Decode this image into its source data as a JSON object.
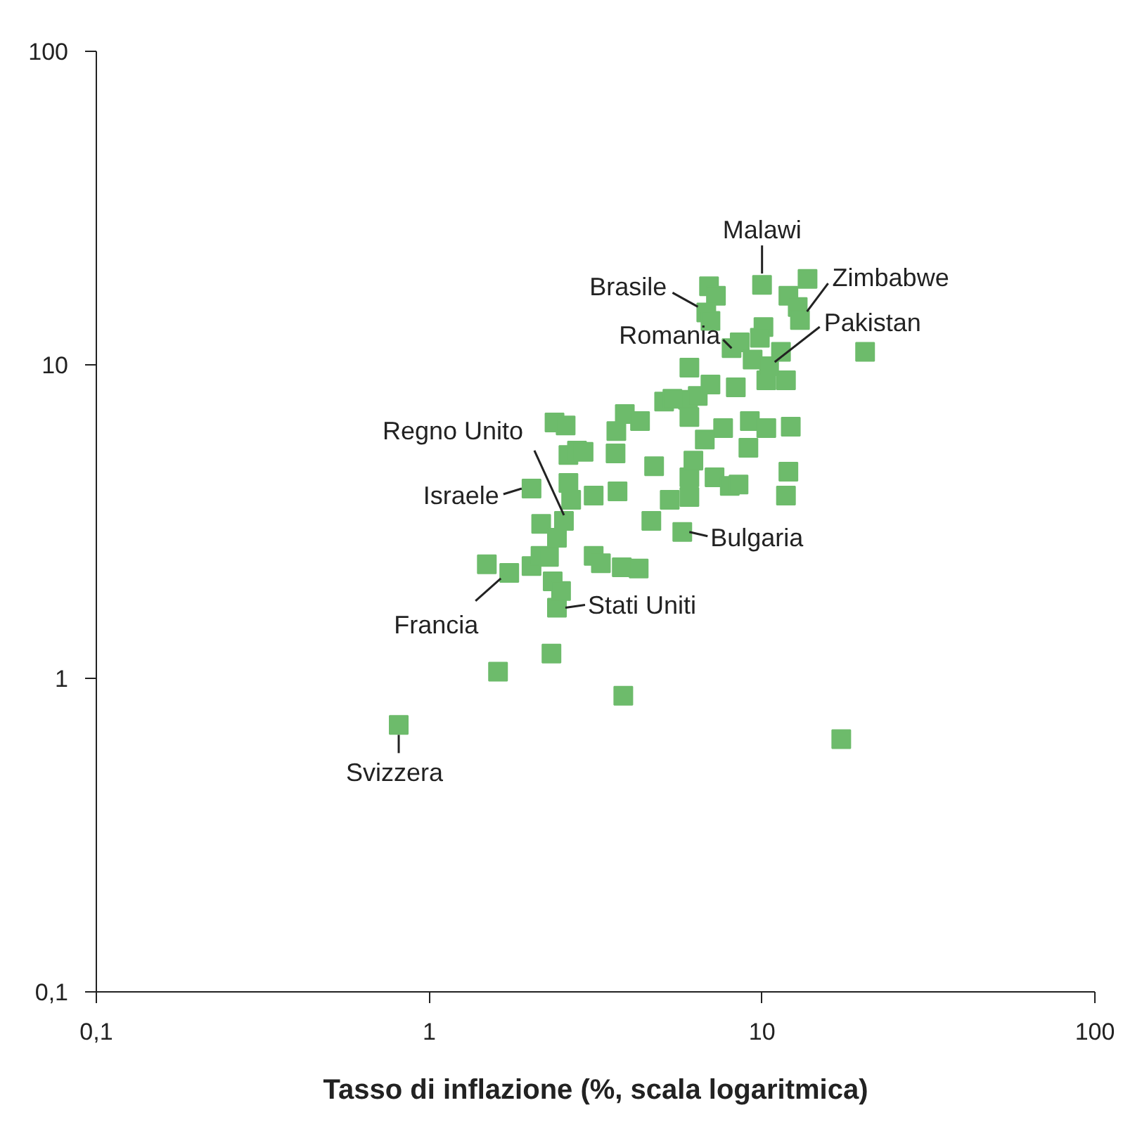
{
  "chart_data": {
    "type": "scatter",
    "xlabel": "Tasso di inflazione (%, scala logaritmica)",
    "log": "xy",
    "xlim": [
      0.1,
      100
    ],
    "ylim": [
      0.1,
      100
    ],
    "xticks": [
      {
        "value": 0.1,
        "label": "0,1"
      },
      1,
      10,
      100
    ],
    "yticks": [
      {
        "value": 0.1,
        "label": "0,1"
      },
      1,
      10,
      100
    ],
    "grid": false,
    "marker": "square",
    "series": [
      {
        "color": "#6dbb6b",
        "x": [
          0.81,
          1.61,
          2.33,
          3.83,
          17.3,
          1.74,
          1.49,
          2.03,
          2.16,
          2.35,
          2.42,
          2.49,
          2.17,
          2.42,
          2.54,
          2.03,
          2.62,
          2.67,
          3.12,
          3.68,
          3.12,
          3.28,
          3.79,
          4.26,
          2.38,
          2.57,
          2.62,
          2.78,
          2.91,
          3.65,
          3.63,
          3.87,
          4.3,
          4.74,
          4.65,
          5.28,
          6.05,
          6.05,
          6.22,
          5.76,
          7.2,
          8.0,
          8.5,
          12.0,
          11.8,
          9.19,
          10.3,
          12.2,
          11.8,
          10.3,
          8.34,
          7.64,
          9.1,
          5.99,
          5.08,
          5.38,
          6.41,
          7.0,
          6.05,
          6.05,
          6.73,
          8.1,
          8.57,
          9.37,
          10.5,
          10.1,
          9.85,
          11.4,
          10.0,
          13.7,
          12.0,
          12.8,
          13.0,
          20.4,
          6.93,
          7.27,
          6.8,
          7.0,
          2.29
        ],
        "values": [
          0.71,
          1.05,
          1.2,
          0.88,
          0.64,
          2.17,
          2.31,
          2.28,
          2.46,
          2.04,
          1.68,
          1.9,
          3.11,
          2.81,
          3.18,
          4.03,
          4.2,
          3.71,
          3.83,
          3.95,
          2.46,
          2.33,
          2.26,
          2.24,
          6.55,
          6.41,
          5.16,
          5.33,
          5.28,
          6.15,
          5.22,
          6.97,
          6.62,
          4.75,
          3.18,
          3.71,
          4.38,
          3.79,
          4.95,
          2.93,
          4.38,
          4.11,
          4.15,
          4.56,
          3.83,
          6.62,
          6.28,
          6.35,
          8.93,
          8.93,
          8.48,
          6.28,
          5.44,
          7.73,
          7.64,
          7.8,
          7.96,
          8.65,
          9.8,
          6.82,
          5.78,
          11.3,
          11.8,
          10.4,
          9.9,
          13.2,
          12.2,
          11.0,
          18.0,
          18.8,
          16.6,
          15.3,
          13.9,
          11.0,
          17.8,
          16.6,
          14.7,
          13.8,
          2.44
        ]
      }
    ],
    "annotations": [
      {
        "text": "Malawi",
        "x": 10.0,
        "y": 18.0
      },
      {
        "text": "Brasile",
        "x": 6.8,
        "y": 14.7
      },
      {
        "text": "Zimbabwe",
        "x": 13.0,
        "y": 13.9
      },
      {
        "text": "Pakistan",
        "x": 10.5,
        "y": 9.9
      },
      {
        "text": "Romania",
        "x": 8.1,
        "y": 11.3
      },
      {
        "text": "Regno Unito",
        "x": 2.54,
        "y": 3.18
      },
      {
        "text": "Israele",
        "x": 2.03,
        "y": 4.03
      },
      {
        "text": "Bulgaria",
        "x": 5.76,
        "y": 2.93
      },
      {
        "text": "Stati Uniti",
        "x": 2.42,
        "y": 1.68
      },
      {
        "text": "Francia",
        "x": 1.74,
        "y": 2.17
      },
      {
        "text": "Svizzera",
        "x": 0.81,
        "y": 0.71
      }
    ]
  }
}
